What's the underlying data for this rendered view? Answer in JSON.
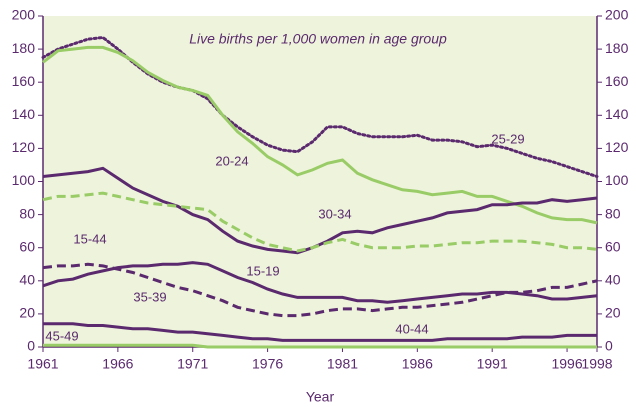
{
  "chart_data": {
    "type": "line",
    "title": "Live births per 1,000 women in age group",
    "x_label": "Year",
    "x": [
      1961,
      1962,
      1963,
      1964,
      1965,
      1966,
      1967,
      1968,
      1969,
      1970,
      1971,
      1972,
      1973,
      1974,
      1975,
      1976,
      1977,
      1978,
      1979,
      1980,
      1981,
      1982,
      1983,
      1984,
      1985,
      1986,
      1987,
      1988,
      1989,
      1990,
      1991,
      1992,
      1993,
      1994,
      1995,
      1996,
      1997,
      1998
    ],
    "xlim": [
      1961,
      1998
    ],
    "xticks": [
      1961,
      1966,
      1971,
      1976,
      1981,
      1986,
      1991,
      1996,
      1998
    ],
    "ylim": [
      0,
      200
    ],
    "yticks": [
      0,
      20,
      40,
      60,
      80,
      100,
      120,
      140,
      160,
      180,
      200
    ],
    "grid": false,
    "series": [
      {
        "name": "25-29",
        "color": "#5b2a6e",
        "style": "dotted",
        "values": [
          175,
          180,
          183,
          186,
          187,
          180,
          172,
          165,
          160,
          157,
          155,
          150,
          140,
          133,
          127,
          122,
          119,
          118,
          124,
          133,
          133,
          129,
          127,
          127,
          127,
          128,
          125,
          125,
          124,
          121,
          122,
          120,
          117,
          114,
          112,
          109,
          106,
          103
        ]
      },
      {
        "name": "20-24",
        "color": "#99cc66",
        "style": "solid",
        "values": [
          172,
          179,
          180,
          181,
          181,
          178,
          173,
          166,
          161,
          157,
          155,
          152,
          140,
          130,
          123,
          115,
          110,
          104,
          107,
          111,
          113,
          105,
          101,
          98,
          95,
          94,
          92,
          93,
          94,
          91,
          91,
          88,
          85,
          81,
          78,
          77,
          77,
          75
        ]
      },
      {
        "name": "30-34",
        "color": "#5b2a6e",
        "style": "solid",
        "values": [
          103,
          104,
          105,
          106,
          108,
          102,
          96,
          92,
          88,
          85,
          80,
          77,
          70,
          64,
          61,
          59,
          58,
          57,
          60,
          64,
          69,
          70,
          69,
          72,
          74,
          76,
          78,
          81,
          82,
          83,
          86,
          86,
          87,
          87,
          89,
          88,
          89,
          90
        ]
      },
      {
        "name": "15-44",
        "color": "#99cc66",
        "style": "dashed",
        "values": [
          89,
          91,
          91,
          92,
          93,
          91,
          89,
          87,
          86,
          85,
          84,
          83,
          76,
          71,
          66,
          62,
          60,
          58,
          60,
          63,
          65,
          62,
          60,
          60,
          60,
          61,
          61,
          62,
          63,
          63,
          64,
          64,
          64,
          63,
          62,
          60,
          60,
          59
        ]
      },
      {
        "name": "15-19",
        "color": "#5b2a6e",
        "style": "solid",
        "values": [
          37,
          40,
          41,
          44,
          46,
          48,
          49,
          49,
          50,
          50,
          51,
          50,
          46,
          42,
          39,
          35,
          32,
          30,
          30,
          30,
          30,
          28,
          28,
          27,
          28,
          29,
          30,
          31,
          32,
          32,
          33,
          33,
          32,
          31,
          29,
          29,
          30,
          31
        ]
      },
      {
        "name": "35-39",
        "color": "#5b2a6e",
        "style": "dashed",
        "values": [
          48,
          49,
          49,
          50,
          49,
          47,
          45,
          42,
          39,
          36,
          34,
          31,
          28,
          24,
          22,
          20,
          19,
          19,
          20,
          22,
          23,
          23,
          22,
          23,
          24,
          24,
          25,
          26,
          27,
          29,
          31,
          33,
          33,
          34,
          36,
          36,
          38,
          40
        ]
      },
      {
        "name": "40-44",
        "color": "#5b2a6e",
        "style": "solid",
        "values": [
          14,
          14,
          14,
          13,
          13,
          12,
          11,
          11,
          10,
          9,
          9,
          8,
          7,
          6,
          5,
          5,
          4,
          4,
          4,
          4,
          4,
          4,
          4,
          4,
          4,
          4,
          4,
          5,
          5,
          5,
          5,
          5,
          6,
          6,
          6,
          7,
          7,
          7
        ]
      },
      {
        "name": "45-49",
        "color": "#99cc66",
        "style": "solid",
        "values": [
          1,
          1,
          1,
          1,
          1,
          1,
          1,
          1,
          1,
          1,
          1,
          0,
          0,
          0,
          0,
          0,
          0,
          0,
          0,
          0,
          0,
          0,
          0,
          0,
          0,
          0,
          0,
          0,
          0,
          0,
          0,
          0,
          0,
          0,
          0,
          0,
          0,
          0
        ]
      }
    ]
  }
}
